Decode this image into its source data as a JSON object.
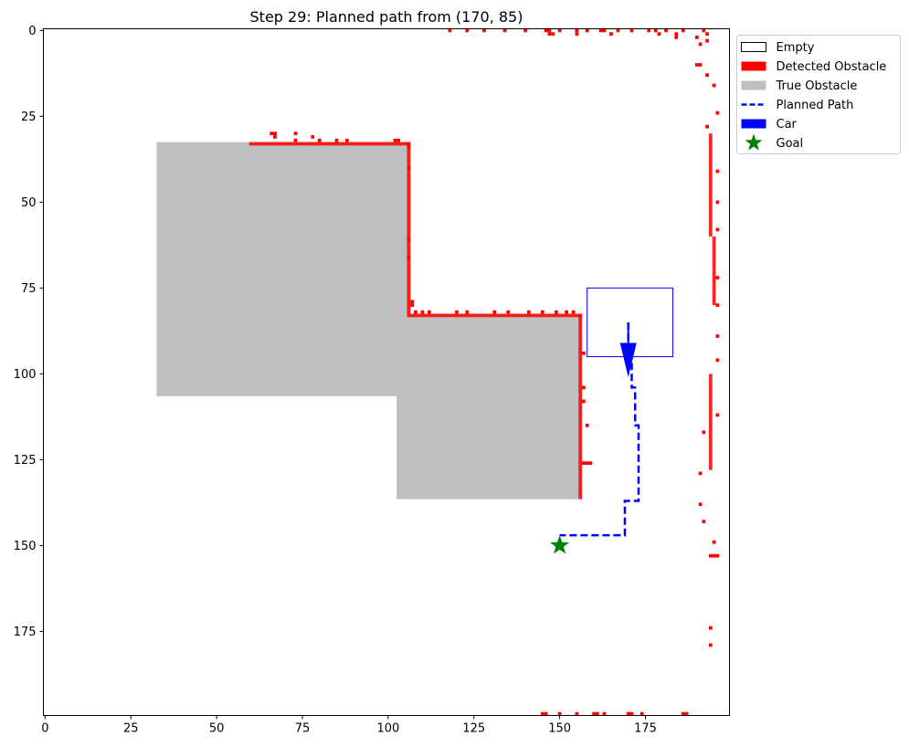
{
  "chart_data": {
    "type": "heatmap",
    "title": "Step 29: Planned path from (170, 85)",
    "xlim": [
      0,
      199
    ],
    "ylim": [
      0,
      199
    ],
    "y_inverted": true,
    "x_ticks": [
      0,
      25,
      50,
      75,
      100,
      125,
      150,
      175
    ],
    "y_ticks": [
      0,
      25,
      50,
      75,
      100,
      125,
      150,
      175
    ],
    "grid": false,
    "legend_position": "outside-top-right",
    "legend": [
      {
        "label": "Empty",
        "kind": "patch-outline",
        "color": "#000000"
      },
      {
        "label": "Detected Obstacle",
        "kind": "patch",
        "color": "#ff0000"
      },
      {
        "label": "True Obstacle",
        "kind": "patch",
        "color": "#bfbfbf"
      },
      {
        "label": "Planned Path",
        "kind": "dashed-line",
        "color": "#0000ff"
      },
      {
        "label": "Car",
        "kind": "patch",
        "color": "#0000ff"
      },
      {
        "label": "Goal",
        "kind": "star",
        "color": "#008000"
      }
    ],
    "true_obstacles": [
      {
        "x0": 32.5,
        "x1": 106.5,
        "y0": 32.5,
        "y1": 106.5
      },
      {
        "x0": 102.5,
        "x1": 156.5,
        "y0": 82.5,
        "y1": 136.5
      }
    ],
    "detected_obstacles": [
      {
        "x0": 59.5,
        "x1": 106.5,
        "y0": 32.5,
        "y1": 33.5
      },
      {
        "x0": 105.5,
        "x1": 106.5,
        "y0": 32.5,
        "y1": 82.5
      },
      {
        "x0": 105.5,
        "x1": 156.5,
        "y0": 82.5,
        "y1": 83.5
      },
      {
        "x0": 155.5,
        "x1": 156.5,
        "y0": 82.5,
        "y1": 136.5
      },
      {
        "x0": 193.5,
        "x1": 194.5,
        "y0": 30,
        "y1": 60
      },
      {
        "x0": 194.5,
        "x1": 195.5,
        "y0": 60,
        "y1": 80
      },
      {
        "x0": 193.5,
        "x1": 194.5,
        "y0": 100,
        "y1": 128
      }
    ],
    "detected_points": [
      [
        118,
        0
      ],
      [
        123,
        0
      ],
      [
        128,
        0
      ],
      [
        134,
        0
      ],
      [
        140,
        0
      ],
      [
        146,
        0
      ],
      [
        147,
        0
      ],
      [
        150,
        0
      ],
      [
        155,
        0
      ],
      [
        158,
        0
      ],
      [
        162,
        0
      ],
      [
        163,
        0
      ],
      [
        167,
        0
      ],
      [
        171,
        0
      ],
      [
        176,
        0
      ],
      [
        178,
        0
      ],
      [
        181,
        0
      ],
      [
        186,
        0
      ],
      [
        192,
        0
      ],
      [
        147,
        1
      ],
      [
        148,
        1
      ],
      [
        155,
        1
      ],
      [
        165,
        1
      ],
      [
        179,
        1
      ],
      [
        184,
        1
      ],
      [
        193,
        1
      ],
      [
        184,
        2
      ],
      [
        190,
        2
      ],
      [
        193,
        3
      ],
      [
        191,
        4
      ],
      [
        190,
        10
      ],
      [
        191,
        10
      ],
      [
        193,
        13
      ],
      [
        195,
        16
      ],
      [
        196,
        24
      ],
      [
        193,
        28
      ],
      [
        66,
        30
      ],
      [
        67,
        30
      ],
      [
        73,
        30
      ],
      [
        67,
        31
      ],
      [
        78,
        31
      ],
      [
        73,
        32
      ],
      [
        80,
        32
      ],
      [
        85,
        32
      ],
      [
        88,
        32
      ],
      [
        102,
        32
      ],
      [
        103,
        32
      ],
      [
        106,
        34
      ],
      [
        106,
        40
      ],
      [
        196,
        41
      ],
      [
        196,
        50
      ],
      [
        196,
        58
      ],
      [
        106,
        61
      ],
      [
        106,
        66
      ],
      [
        196,
        72
      ],
      [
        107,
        79
      ],
      [
        107,
        80
      ],
      [
        196,
        80
      ],
      [
        108,
        82
      ],
      [
        110,
        82
      ],
      [
        112,
        82
      ],
      [
        120,
        82
      ],
      [
        123,
        82
      ],
      [
        131,
        82
      ],
      [
        135,
        82
      ],
      [
        141,
        82
      ],
      [
        145,
        82
      ],
      [
        149,
        82
      ],
      [
        152,
        82
      ],
      [
        154,
        82
      ],
      [
        196,
        89
      ],
      [
        157,
        94
      ],
      [
        196,
        96
      ],
      [
        157,
        104
      ],
      [
        157,
        108
      ],
      [
        196,
        112
      ],
      [
        158,
        115
      ],
      [
        192,
        117
      ],
      [
        157,
        126
      ],
      [
        158,
        126
      ],
      [
        159,
        126
      ],
      [
        191,
        129
      ],
      [
        191,
        138
      ],
      [
        192,
        143
      ],
      [
        195,
        149
      ],
      [
        194,
        153
      ],
      [
        195,
        153
      ],
      [
        196,
        153
      ],
      [
        194,
        174
      ],
      [
        194,
        179
      ],
      [
        145,
        199
      ],
      [
        146,
        199
      ],
      [
        150,
        199
      ],
      [
        155,
        199
      ],
      [
        160,
        199
      ],
      [
        161,
        199
      ],
      [
        163,
        199
      ],
      [
        170,
        199
      ],
      [
        171,
        199
      ],
      [
        174,
        199
      ],
      [
        186,
        199
      ],
      [
        187,
        199
      ]
    ],
    "planned_path": {
      "x": [
        170,
        170,
        171,
        171,
        172,
        172,
        173,
        173,
        169,
        169,
        150
      ],
      "y": [
        85,
        92,
        92,
        104,
        104,
        115,
        115,
        137,
        137,
        147,
        147
      ]
    },
    "car": {
      "x": 170,
      "y": 85,
      "width": 25,
      "height": 20,
      "heading_deg": 90
    },
    "goal": {
      "x": 150,
      "y": 150
    }
  }
}
